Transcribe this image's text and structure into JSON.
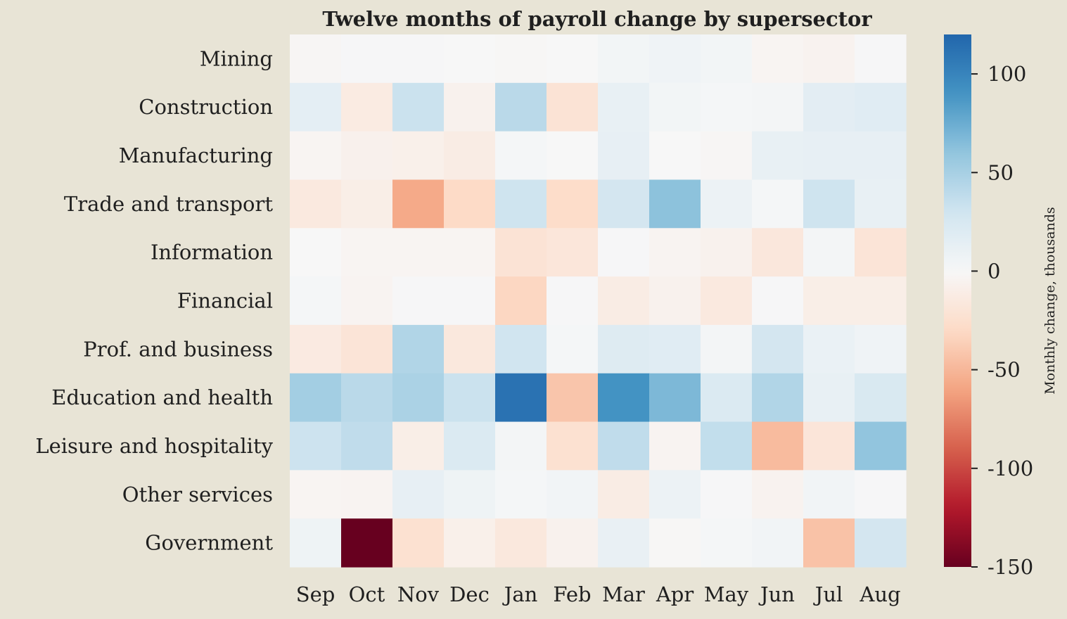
{
  "chart_data": {
    "type": "heatmap",
    "title": "Twelve months of payroll change by supersector",
    "xlabel": "",
    "ylabel": "",
    "x": [
      "Sep",
      "Oct",
      "Nov",
      "Dec",
      "Jan",
      "Feb",
      "Mar",
      "Apr",
      "May",
      "Jun",
      "Jul",
      "Aug"
    ],
    "y": [
      "Mining",
      "Construction",
      "Manufacturing",
      "Trade and transport",
      "Information",
      "Financial",
      "Prof. and business",
      "Education and health",
      "Leisure and hospitality",
      "Other services",
      "Government"
    ],
    "values": [
      [
        -2,
        1,
        1,
        0,
        -1,
        0,
        4,
        6,
        4,
        -3,
        -5,
        1
      ],
      [
        15,
        -13,
        33,
        -6,
        41,
        -21,
        12,
        4,
        2,
        3,
        16,
        18
      ],
      [
        -3,
        -7,
        -8,
        -12,
        2,
        0,
        13,
        0,
        -2,
        12,
        13,
        13
      ],
      [
        -15,
        -10,
        -57,
        -30,
        31,
        -28,
        28,
        62,
        9,
        2,
        31,
        12
      ],
      [
        0,
        -3,
        -3,
        -3,
        -21,
        -18,
        1,
        -4,
        -6,
        -17,
        3,
        -20
      ],
      [
        2,
        -4,
        1,
        1,
        -32,
        1,
        -12,
        -6,
        -15,
        1,
        -10,
        -10
      ],
      [
        -14,
        -20,
        45,
        -16,
        30,
        2,
        20,
        18,
        3,
        28,
        10,
        6
      ],
      [
        52,
        41,
        48,
        33,
        112,
        -42,
        90,
        68,
        22,
        45,
        12,
        24
      ],
      [
        32,
        38,
        -10,
        22,
        3,
        -24,
        38,
        -4,
        37,
        -48,
        -19,
        60
      ],
      [
        -3,
        -4,
        13,
        7,
        2,
        5,
        -12,
        9,
        1,
        -5,
        5,
        1
      ],
      [
        7,
        -150,
        -24,
        -8,
        -16,
        -6,
        11,
        -1,
        2,
        5,
        -44,
        28
      ]
    ],
    "colorbar": {
      "label": "Monthly change, thousands",
      "min": -150,
      "max": 120,
      "ticks": [
        100,
        50,
        0,
        -50,
        -100,
        -150
      ],
      "colormap": "RdBu (diverging, centered at 0)"
    },
    "colors": {
      "background": "#e8e4d6",
      "text": "#1f1f1f"
    },
    "grid": false
  }
}
